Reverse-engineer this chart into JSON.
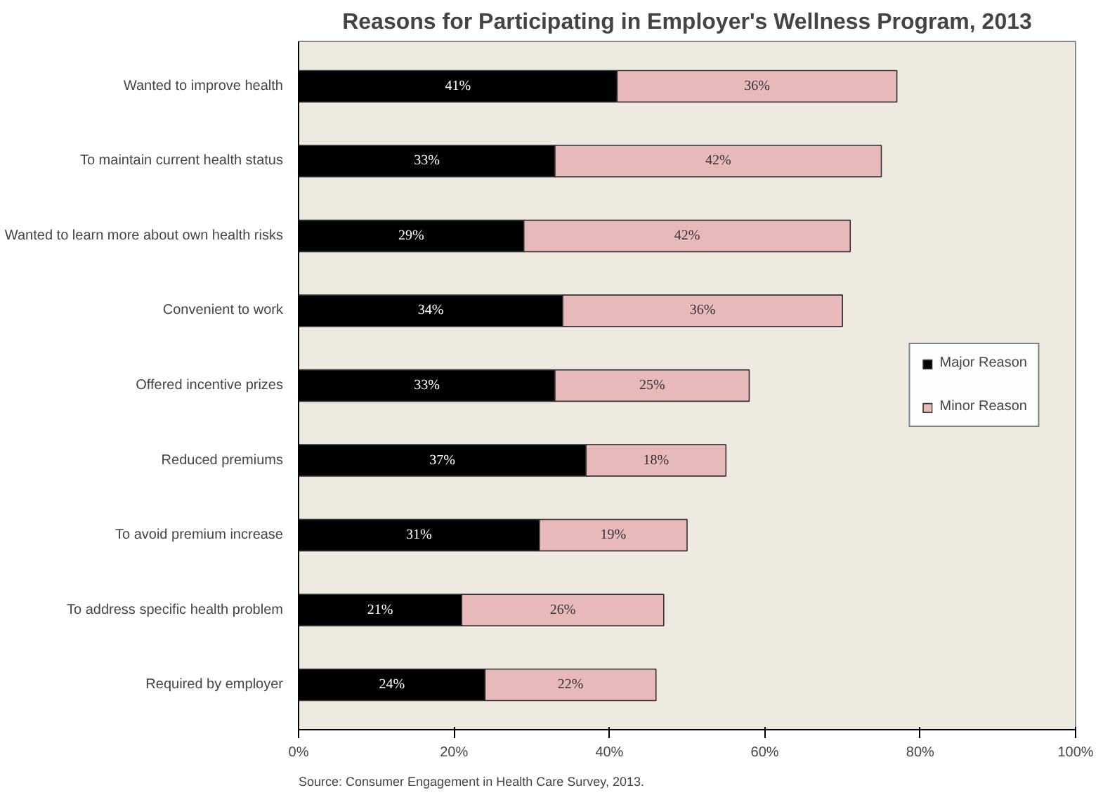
{
  "chart_data": {
    "type": "bar",
    "orientation": "horizontal",
    "stacked": true,
    "title": "Reasons for Participating in Employer's Wellness Program, 2013",
    "categories": [
      "Wanted to improve health",
      "To maintain current health status",
      "Wanted to learn more about own health risks",
      "Convenient to work",
      "Offered incentive prizes",
      "Reduced premiums",
      "To avoid premium increase",
      "To address specific health problem",
      "Required by employer"
    ],
    "series": [
      {
        "name": "Major Reason",
        "color": "#000000",
        "values": [
          41,
          33,
          29,
          34,
          33,
          37,
          31,
          21,
          24
        ]
      },
      {
        "name": "Minor Reason",
        "color": "#e8b9ba",
        "values": [
          36,
          42,
          42,
          36,
          25,
          18,
          19,
          26,
          22
        ]
      }
    ],
    "value_labels": [
      [
        "41%",
        "33%",
        "29%",
        "34%",
        "33%",
        "37%",
        "31%",
        "21%",
        "24%"
      ],
      [
        "36%",
        "42%",
        "42%",
        "36%",
        "25%",
        "18%",
        "19%",
        "26%",
        "22%"
      ]
    ],
    "xlim": [
      0,
      100
    ],
    "xticks": [
      {
        "value": 0,
        "label": "0%"
      },
      {
        "value": 20,
        "label": "20%"
      },
      {
        "value": 40,
        "label": "40%"
      },
      {
        "value": 60,
        "label": "60%"
      },
      {
        "value": 80,
        "label": "80%"
      },
      {
        "value": 100,
        "label": "100%"
      }
    ],
    "grid": false,
    "legend": "right",
    "annotations": [
      "Source: Consumer Engagement in Health Care Survey, 2013."
    ]
  }
}
